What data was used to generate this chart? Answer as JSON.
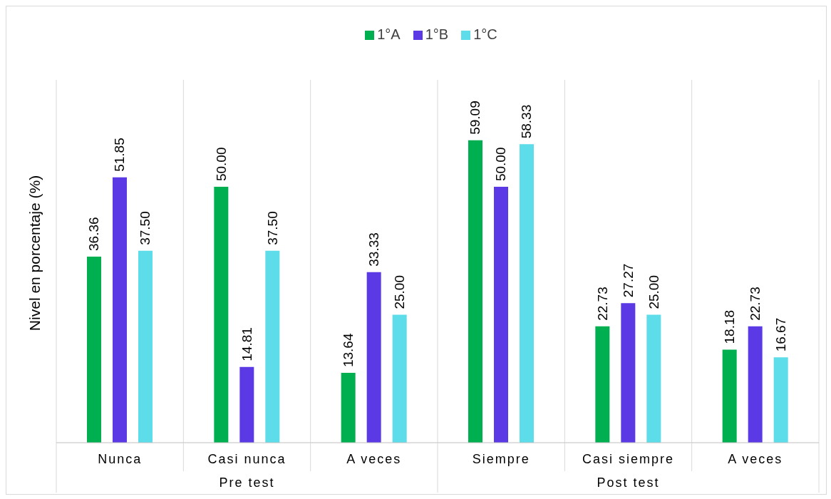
{
  "chart_data": {
    "type": "bar",
    "ylabel": "Nivel en porcentaje (%)",
    "categories": [
      "Nunca",
      "Casi nunca",
      "A veces",
      "Siempre",
      "Casi siempre",
      "A veces"
    ],
    "annotations": [
      "Pre test",
      "Post test"
    ],
    "series": [
      {
        "name": "1°A",
        "color": "#00b050",
        "values": [
          36.36,
          50.0,
          13.64,
          59.09,
          22.73,
          18.18
        ],
        "value_labels": [
          "36.36",
          "50.00",
          "13.64",
          "59.09",
          "22.73",
          "18.18"
        ]
      },
      {
        "name": "1°B",
        "color": "#5b3ae6",
        "values": [
          51.85,
          14.81,
          33.33,
          50.0,
          27.27,
          22.73
        ],
        "value_labels": [
          "51.85",
          "14.81",
          "33.33",
          "50.00",
          "27.27",
          "22.73"
        ]
      },
      {
        "name": "1°C",
        "color": "#5ddde9",
        "values": [
          37.5,
          37.5,
          25.0,
          58.33,
          25.0,
          16.67
        ],
        "value_labels": [
          "37.50",
          "37.50",
          "25.00",
          "58.33",
          "25.00",
          "16.67"
        ]
      }
    ],
    "grid": "x",
    "legend": "top"
  }
}
